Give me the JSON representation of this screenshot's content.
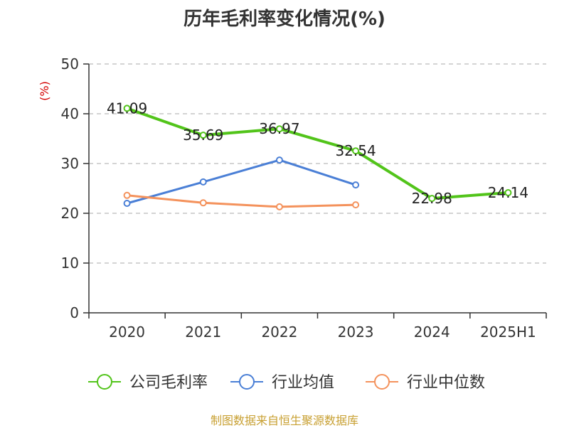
{
  "colors": {
    "company": "#52c41a",
    "industry_avg": "#4a7fd6",
    "industry_median": "#f4925c",
    "ylabel": "#d40000",
    "source": "#c8a032",
    "grid": "#bbbbbb",
    "axis": "#333333"
  },
  "chart_data": {
    "type": "line",
    "title": "历年毛利率变化情况(%)",
    "ylabel": "(%)",
    "xlabel": "",
    "categories": [
      "2020",
      "2021",
      "2022",
      "2023",
      "2024",
      "2025H1"
    ],
    "ylim": [
      0,
      50
    ],
    "yticks": [
      0,
      10,
      20,
      30,
      40,
      50
    ],
    "grid": "horizontal-dashed",
    "legend_position": "bottom",
    "series": [
      {
        "name": "公司毛利率",
        "values": [
          41.09,
          35.69,
          36.97,
          32.54,
          22.98,
          24.14
        ],
        "labels": [
          "41.09",
          "35.69",
          "36.97",
          "32.54",
          "22.98",
          "24.14"
        ]
      },
      {
        "name": "行业均值",
        "values": [
          22.0,
          26.3,
          30.7,
          25.7,
          null,
          null
        ]
      },
      {
        "name": "行业中位数",
        "values": [
          23.6,
          22.1,
          21.3,
          21.7,
          null,
          null
        ]
      }
    ]
  },
  "source": "制图数据来自恒生聚源数据库"
}
